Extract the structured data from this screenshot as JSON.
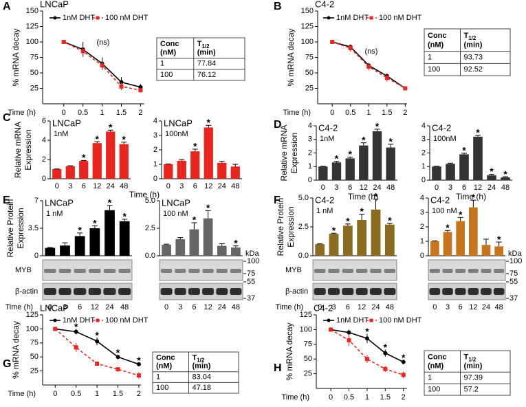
{
  "chart_data": [
    {
      "type": "line",
      "panel": "A",
      "title": "LNCaP",
      "ylabel": "% mRNA decay",
      "xlabel": "Time (h)",
      "x": [
        0,
        0.5,
        1,
        1.5,
        2
      ],
      "xlim": [
        -0.55,
        2.1
      ],
      "xticks": [
        0,
        0.5,
        1,
        1.5,
        2
      ],
      "ylim": [
        0,
        150
      ],
      "yticks": [
        25,
        50,
        75,
        100,
        125,
        150
      ],
      "series": [
        {
          "name": "1nM DHT",
          "color": "#000000",
          "marker": "circle",
          "dashed": false,
          "values": [
            100,
            88,
            65,
            35,
            27
          ],
          "errors": [
            3,
            12,
            10,
            8,
            5
          ]
        },
        {
          "name": "100 nM DHT",
          "color": "#e8251f",
          "marker": "square",
          "dashed": true,
          "values": [
            100,
            85,
            62,
            28,
            22
          ],
          "errors": [
            3,
            8,
            6,
            6,
            4
          ]
        }
      ],
      "annotation": "(ns)",
      "table": {
        "header": [
          {
            "text": "Conc",
            "unit": "(nM)"
          },
          {
            "text": "T",
            "sub": "1/2",
            "unit": "(min)"
          }
        ],
        "rows": [
          [
            1,
            77.84
          ],
          [
            100,
            76.12
          ]
        ]
      }
    },
    {
      "type": "line",
      "panel": "B",
      "title": "C4-2",
      "ylabel": "% mRNA decay",
      "xlabel": "Time (h)",
      "x": [
        0,
        0.5,
        1,
        1.5,
        2
      ],
      "xlim": [
        -0.4,
        2.05
      ],
      "xticks": [
        0,
        0.5,
        1,
        1.5,
        2
      ],
      "ylim": [
        0,
        150
      ],
      "yticks": [
        25,
        50,
        75,
        100,
        125,
        150
      ],
      "series": [
        {
          "name": "1nM DHT",
          "color": "#000000",
          "marker": "circle",
          "dashed": false,
          "values": [
            100,
            92,
            62,
            45,
            25
          ],
          "errors": [
            2,
            4,
            4,
            4,
            2
          ]
        },
        {
          "name": "100 nM DHT",
          "color": "#e8251f",
          "marker": "square",
          "dashed": true,
          "values": [
            100,
            90,
            60,
            42,
            25
          ],
          "errors": [
            2,
            6,
            6,
            6,
            2
          ]
        }
      ],
      "annotation": "(ns)",
      "table": {
        "header": [
          {
            "text": "Conc",
            "unit": "(nM)"
          },
          {
            "text": "T",
            "sub": "1/2",
            "unit": "(min)"
          }
        ],
        "rows": [
          [
            1,
            93.73
          ],
          [
            100,
            92.52
          ]
        ]
      }
    },
    {
      "type": "bar",
      "panel": "C",
      "title": "LNCaP",
      "subtitle": "1nM",
      "ylabel": [
        "Relative mRNA",
        "Expression"
      ],
      "xlabel": "Time (h)",
      "categories": [
        "0",
        "3",
        "6",
        "12",
        "24",
        "48"
      ],
      "values": [
        1,
        1.3,
        1.85,
        3.7,
        4.9,
        3.6
      ],
      "errors": [
        0.02,
        0.05,
        0.05,
        0.15,
        0.15,
        0.2
      ],
      "significance": [
        null,
        null,
        "*",
        "*",
        "*",
        "*"
      ],
      "color": "#e8251f",
      "ylim": [
        0,
        6
      ],
      "yticks": [
        0,
        2,
        4,
        6
      ]
    },
    {
      "type": "bar",
      "title": "LNCaP",
      "subtitle": "100nM",
      "categories": [
        "0",
        "3",
        "6",
        "12",
        "24",
        "48"
      ],
      "values": [
        1,
        1.25,
        1.9,
        3.55,
        1.1,
        0.85
      ],
      "errors": [
        0.02,
        0.08,
        0.15,
        0.15,
        0.1,
        0.15
      ],
      "significance": [
        null,
        null,
        "*",
        "*",
        null,
        null
      ],
      "color": "#e8251f",
      "ylim": [
        0,
        4
      ],
      "yticks": [
        0,
        1,
        2,
        3,
        4
      ]
    },
    {
      "type": "bar",
      "panel": "D",
      "title": "C4-2",
      "subtitle": "1nM",
      "ylabel": [
        "Relative mRNA",
        "Expression"
      ],
      "xlabel": "Time (h)",
      "categories": [
        "0",
        "3",
        "6",
        "12",
        "24",
        "48"
      ],
      "values": [
        1,
        1.3,
        1.6,
        2.55,
        3.6,
        2.4
      ],
      "errors": [
        0.02,
        0.08,
        0.1,
        0.2,
        0.15,
        0.25
      ],
      "significance": [
        null,
        "*",
        "*",
        "*",
        "*",
        "*"
      ],
      "color": "#333333",
      "ylim": [
        0,
        4
      ],
      "yticks": [
        0,
        1,
        2,
        3,
        4
      ]
    },
    {
      "type": "bar",
      "title": "C4-2",
      "subtitle": "100nM",
      "xlabel": "Time (h)",
      "categories": [
        "0",
        "3",
        "6",
        "12",
        "24",
        "48"
      ],
      "values": [
        1,
        1.2,
        1.9,
        3.2,
        0.35,
        0.2
      ],
      "errors": [
        0.02,
        0.05,
        0.08,
        0.1,
        0.08,
        0.05
      ],
      "significance": [
        null,
        null,
        "*",
        "*",
        "*",
        "*"
      ],
      "color": "#333333",
      "ylim": [
        0,
        4
      ],
      "yticks": [
        0,
        1,
        2,
        3,
        4
      ]
    },
    {
      "type": "bar",
      "panel": "E",
      "title": "LNCaP",
      "subtitle": "1 nM",
      "ylabel": [
        "Relative Protein",
        "Expression"
      ],
      "xlabel": "Time (h)",
      "categories": [
        "0",
        "3",
        "6",
        "12",
        "24",
        "48"
      ],
      "values": [
        1,
        1.3,
        2.5,
        3.5,
        5.8,
        4.4
      ],
      "errors": [
        0.05,
        0.35,
        0.4,
        0.3,
        0.6,
        0.25
      ],
      "significance": [
        null,
        null,
        "*",
        "*",
        "*",
        "*"
      ],
      "color": "#000000",
      "ylim": [
        0,
        7
      ],
      "yticks": [
        0,
        3.5,
        7
      ],
      "blot_rows": [
        "MYB",
        "β-actin"
      ]
    },
    {
      "type": "bar",
      "title": "LNCaP",
      "subtitle": "100 nM",
      "categories": [
        "0",
        "3",
        "6",
        "12",
        "24",
        "48"
      ],
      "values": [
        1,
        1.5,
        2.4,
        3.4,
        0.9,
        0.75
      ],
      "errors": [
        0.05,
        0.15,
        0.6,
        0.7,
        0.2,
        0.15
      ],
      "significance": [
        null,
        null,
        "*",
        "*",
        null,
        "*"
      ],
      "color": "#666666",
      "ylim": [
        0,
        5
      ],
      "yticks": [
        {
          "value": 0,
          "label": "0.0"
        },
        2.5,
        {
          "value": 5,
          "label": "5.0"
        }
      ],
      "kda_label": "kDa",
      "kda_markers": [
        100,
        75,
        55,
        37
      ]
    },
    {
      "type": "bar",
      "panel": "F",
      "title": "C4-2",
      "subtitle": "1 nM",
      "ylabel": [
        "Relative Protein",
        "Expression"
      ],
      "xlabel": "Time (h)",
      "categories": [
        "0",
        "3",
        "6",
        "12",
        "24",
        "48"
      ],
      "values": [
        1,
        1.9,
        2.6,
        3.1,
        4.0,
        2.7
      ],
      "errors": [
        0.03,
        0.05,
        0.15,
        0.5,
        0.9,
        0.1
      ],
      "significance": [
        null,
        "*",
        "*",
        "*",
        "*",
        "*"
      ],
      "color": "#8b6b1f",
      "ylim": [
        0,
        5
      ],
      "yticks": [
        {
          "value": 0,
          "label": "0.0"
        },
        2.5,
        {
          "value": 5,
          "label": "5.0"
        }
      ],
      "blot_rows": [
        "MYB",
        "β-actin"
      ]
    },
    {
      "type": "bar",
      "title": "C4-2",
      "subtitle": "100 nM",
      "categories": [
        "0",
        "3",
        "6",
        "12",
        "24",
        "48"
      ],
      "values": [
        1,
        1.65,
        2.4,
        3.35,
        0.75,
        0.65
      ],
      "errors": [
        0.03,
        0.1,
        0.25,
        0.5,
        0.4,
        0.3
      ],
      "significance": [
        null,
        "*",
        "*",
        "*",
        null,
        "*"
      ],
      "color": "#c8741c",
      "ylim": [
        0,
        4
      ],
      "yticks": [
        0,
        1,
        2,
        3,
        4
      ],
      "kda_label": "kDa",
      "kda_markers": [
        100,
        75,
        55,
        37
      ]
    },
    {
      "type": "line",
      "panel": "G",
      "title": "LNCaP",
      "ylabel": "% mRNA decay",
      "xlabel": "Time (h)",
      "x": [
        0,
        0.5,
        1,
        1.5,
        2
      ],
      "xlim": [
        -0.3,
        2.05
      ],
      "xticks": [
        0,
        0.5,
        1,
        1.5,
        2
      ],
      "ylim": [
        0,
        125
      ],
      "yticks": [
        25,
        50,
        75,
        100,
        125
      ],
      "series": [
        {
          "name": "1nM DHT",
          "color": "#000000",
          "marker": "circle",
          "dashed": false,
          "values": [
            100,
            95,
            78,
            50,
            37
          ],
          "errors": [
            2,
            5,
            7,
            4,
            3
          ]
        },
        {
          "name": "100 nM DHT",
          "color": "#e8251f",
          "marker": "square",
          "dashed": true,
          "values": [
            100,
            67,
            38,
            28,
            17
          ],
          "errors": [
            2,
            8,
            4,
            4,
            6
          ]
        }
      ],
      "significance": [
        null,
        "*",
        "*",
        "*",
        "*"
      ],
      "table": {
        "header": [
          {
            "text": "Conc",
            "unit": "(nM)"
          },
          {
            "text": "T",
            "sub": "1/2",
            "unit": "(min)"
          }
        ],
        "rows": [
          [
            1,
            83.04
          ],
          [
            100,
            47.18
          ]
        ]
      }
    },
    {
      "type": "line",
      "panel": "H",
      "title": "C4-2",
      "ylabel": "% mRNA decay",
      "xlabel": "Time (h)",
      "x": [
        0,
        0.5,
        1,
        1.5,
        2
      ],
      "xlim": [
        -0.4,
        2.1
      ],
      "xticks": [
        0,
        0.5,
        1,
        1.5,
        2
      ],
      "ylim": [
        0,
        125
      ],
      "yticks": [
        25,
        50,
        75,
        100,
        125
      ],
      "series": [
        {
          "name": "1nM DHT",
          "color": "#000000",
          "marker": "circle",
          "dashed": false,
          "values": [
            100,
            95,
            85,
            60,
            45
          ],
          "errors": [
            2,
            5,
            8,
            6,
            4
          ]
        },
        {
          "name": "100 nM DHT",
          "color": "#e8251f",
          "marker": "square",
          "dashed": true,
          "values": [
            100,
            82,
            50,
            33,
            23
          ],
          "errors": [
            2,
            10,
            7,
            5,
            6
          ]
        }
      ],
      "significance": [
        null,
        null,
        "*",
        "*",
        "*"
      ],
      "table": {
        "header": [
          {
            "text": "Conc",
            "unit": "(nM)"
          },
          {
            "text": "T",
            "sub": "1/2",
            "unit": "(min)"
          }
        ],
        "rows": [
          [
            1,
            97.39
          ],
          [
            100,
            57.2
          ]
        ]
      }
    }
  ]
}
